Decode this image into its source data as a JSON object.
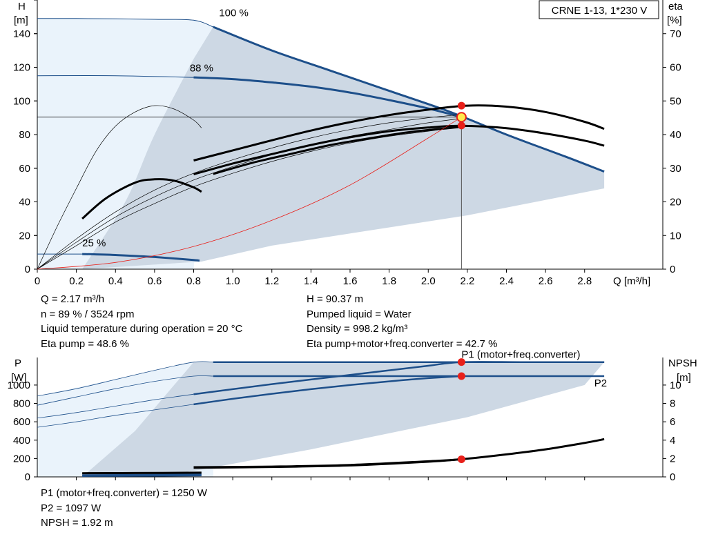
{
  "chart_data": [
    {
      "type": "line",
      "title": "CRNE 1-13, 1*230 V",
      "xlabel": "Q [m³/h]",
      "ylabel_left": [
        "H",
        "[m]"
      ],
      "ylabel_right": [
        "eta",
        "[%]"
      ],
      "xlim": [
        0,
        3.2
      ],
      "ylim_left": [
        0,
        160
      ],
      "ylim_right": [
        0,
        80
      ],
      "xticks": [
        "0",
        "0.2",
        "0.4",
        "0.6",
        "0.8",
        "1.0",
        "1.2",
        "1.4",
        "1.6",
        "1.8",
        "2.0",
        "2.2",
        "2.4",
        "2.6",
        "2.8"
      ],
      "yticks_left": [
        "0",
        "20",
        "40",
        "60",
        "80",
        "100",
        "120",
        "140"
      ],
      "yticks_right": [
        "0",
        "10",
        "20",
        "30",
        "40",
        "50",
        "60",
        "70"
      ],
      "speed_labels": [
        {
          "text": "100 %",
          "x": 0.93,
          "y": 148
        },
        {
          "text": "88 %",
          "x": 0.78,
          "y": 115
        },
        {
          "text": "25 %",
          "x": 0.23,
          "y": 11
        }
      ],
      "series": [
        {
          "name": "100 %",
          "kind": "head",
          "axis": "left",
          "x": [
            0,
            0.2,
            0.4,
            0.6,
            0.8,
            0.9,
            1.2,
            1.5,
            1.8,
            2.1,
            2.4,
            2.7,
            2.9
          ],
          "y": [
            149,
            149,
            148.8,
            148.5,
            148,
            144,
            130,
            118,
            106,
            94,
            80,
            67,
            58
          ],
          "fade_x": 0.9
        },
        {
          "name": "88 %",
          "kind": "head",
          "axis": "left",
          "x": [
            0,
            0.4,
            0.8,
            1.0,
            1.2,
            1.4,
            1.6,
            1.8,
            2.0,
            2.17
          ],
          "y": [
            115,
            115,
            114,
            113,
            111,
            108.5,
            105,
            100.5,
            95.5,
            90.4
          ],
          "fade_x": 0.8
        },
        {
          "name": "25 %",
          "kind": "head",
          "axis": "left",
          "x": [
            0,
            0.23,
            0.4,
            0.6,
            0.8,
            0.83
          ],
          "y": [
            9,
            9,
            8.4,
            7.2,
            5.4,
            5
          ],
          "fade_x": 0.23
        },
        {
          "name": "eta 100 %",
          "kind": "eta",
          "axis": "right",
          "style": "thick",
          "x": [
            0.8,
            1.0,
            1.2,
            1.4,
            1.6,
            1.8,
            2.0,
            2.2,
            2.4,
            2.6,
            2.8,
            2.9
          ],
          "y": [
            32.3,
            35.3,
            38.3,
            41.2,
            43.7,
            45.8,
            47.4,
            48.6,
            48.3,
            46.7,
            43.8,
            41.7
          ]
        },
        {
          "name": "eta 88 %",
          "kind": "eta",
          "axis": "right",
          "style": "thick",
          "x": [
            0.8,
            1.0,
            1.2,
            1.4,
            1.6,
            1.8,
            2.0,
            2.17,
            2.4,
            2.6,
            2.8,
            2.9
          ],
          "y": [
            28.2,
            31.4,
            34.2,
            36.9,
            39.2,
            41.0,
            42.1,
            42.6,
            41.9,
            40.3,
            38.2,
            36.7
          ]
        },
        {
          "name": "eta 88 % lower",
          "kind": "eta",
          "axis": "right",
          "style": "thick",
          "x": [
            0.9,
            1.1,
            1.3,
            1.5,
            1.7,
            1.9,
            2.1,
            2.17
          ],
          "y": [
            28.3,
            31.6,
            34.3,
            36.9,
            38.9,
            40.7,
            41.9,
            42.3
          ]
        },
        {
          "name": "eta 25 %",
          "kind": "eta",
          "axis": "right",
          "style": "thick",
          "x": [
            0.23,
            0.35,
            0.5,
            0.6,
            0.7,
            0.8,
            0.84
          ],
          "y": [
            15,
            21,
            25.7,
            26.7,
            26.3,
            24.3,
            23
          ]
        },
        {
          "name": "eta low-speed thin",
          "kind": "eta",
          "axis": "right",
          "style": "thin",
          "x": [
            0,
            0.1,
            0.2,
            0.3,
            0.4,
            0.5,
            0.6,
            0.7,
            0.8,
            0.84
          ],
          "y": [
            0,
            12.5,
            24,
            35,
            42.5,
            46.7,
            48.6,
            47.6,
            44.3,
            42
          ]
        },
        {
          "name": "eta guide 1",
          "kind": "eta",
          "axis": "right",
          "style": "thin",
          "x": [
            0,
            0.2,
            0.4,
            0.6,
            0.8,
            1.0,
            1.2,
            1.4,
            1.6,
            1.8,
            2.0,
            2.17
          ],
          "y": [
            0,
            9,
            17,
            23.5,
            28.5,
            32.5,
            36,
            39,
            41.5,
            43.5,
            45,
            46
          ]
        },
        {
          "name": "eta guide 2",
          "kind": "eta",
          "axis": "right",
          "style": "thin",
          "x": [
            0,
            0.2,
            0.4,
            0.6,
            0.8,
            1.0,
            1.2,
            1.4,
            1.6,
            1.8,
            2.0,
            2.17
          ],
          "y": [
            0,
            8,
            15.5,
            21.5,
            26.5,
            30.5,
            34,
            37,
            39.5,
            41.5,
            43.5,
            44.8
          ]
        },
        {
          "name": "eta guide 3",
          "kind": "eta",
          "axis": "right",
          "style": "thin",
          "x": [
            0,
            0.2,
            0.4,
            0.6,
            0.8,
            1.0,
            1.2,
            1.4,
            1.6,
            1.8,
            2.0,
            2.17
          ],
          "y": [
            0,
            7,
            14,
            19.5,
            24.5,
            28.5,
            32,
            35,
            37.5,
            39.5,
            41,
            42.3
          ]
        },
        {
          "name": "system curve",
          "kind": "system",
          "axis": "left",
          "x": [
            0,
            0.4,
            0.8,
            1.2,
            1.6,
            2.0,
            2.17
          ],
          "y": [
            0,
            4,
            13.5,
            29,
            50,
            78,
            90.4
          ]
        }
      ],
      "duty_point": {
        "q": 2.17,
        "h": 90.37,
        "eta_pump": 48.6,
        "eta_total": 42.7
      }
    },
    {
      "type": "line",
      "xlabel": "",
      "ylabel_left": [
        "P",
        "[W]"
      ],
      "ylabel_right": [
        "NPSH",
        "[m]"
      ],
      "xlim": [
        0,
        3.2
      ],
      "ylim_left": [
        0,
        1300
      ],
      "ylim_right": [
        0,
        13
      ],
      "yticks_left": [
        "0",
        "200",
        "400",
        "600",
        "800",
        "1000"
      ],
      "yticks_right": [
        "0",
        "2",
        "4",
        "6",
        "8",
        "10"
      ],
      "series_labels": [
        {
          "text": "P1 (motor+freq.converter)",
          "x": 2.17,
          "y": 1250
        },
        {
          "text": "P2",
          "x": 2.8,
          "y": 1000
        }
      ],
      "series": [
        {
          "name": "P1 (motor+freq.converter)",
          "kind": "power",
          "axis": "left",
          "x": [
            0,
            0.2,
            0.4,
            0.6,
            0.8,
            0.9,
            1.2,
            1.6,
            2.0,
            2.4,
            2.8,
            2.9
          ],
          "y": [
            880,
            960,
            1060,
            1160,
            1250,
            1250,
            1250,
            1250,
            1250,
            1250,
            1250,
            1250
          ],
          "fade_x": 0.9
        },
        {
          "name": "P1 88 %",
          "kind": "power",
          "axis": "left",
          "x": [
            0,
            0.2,
            0.4,
            0.6,
            0.8,
            1.0,
            1.2,
            1.4,
            1.6,
            1.8,
            2.0,
            2.17,
            2.5,
            2.9
          ],
          "y": [
            640,
            700,
            770,
            840,
            900,
            955,
            1010,
            1060,
            1110,
            1160,
            1210,
            1250,
            1250,
            1250
          ],
          "fade_x": 0.8
        },
        {
          "name": "P2",
          "kind": "power",
          "axis": "left",
          "x": [
            0,
            0.2,
            0.4,
            0.6,
            0.8,
            0.9,
            1.2,
            1.6,
            2.0,
            2.4,
            2.8,
            2.9
          ],
          "y": [
            780,
            870,
            960,
            1040,
            1097,
            1097,
            1097,
            1097,
            1097,
            1097,
            1097,
            1097
          ],
          "fade_x": 0.9
        },
        {
          "name": "P2 88 %",
          "kind": "power",
          "axis": "left",
          "x": [
            0,
            0.2,
            0.4,
            0.6,
            0.8,
            1.0,
            1.2,
            1.4,
            1.6,
            1.8,
            2.0,
            2.17
          ],
          "y": [
            540,
            600,
            670,
            730,
            790,
            850,
            905,
            955,
            1000,
            1040,
            1075,
            1097
          ],
          "fade_x": 0.8
        },
        {
          "name": "P1 25 %",
          "kind": "power",
          "axis": "left",
          "x": [
            0.23,
            0.5,
            0.84
          ],
          "y": [
            18,
            22,
            28
          ],
          "fade_x": 0.23
        },
        {
          "name": "P2 25 %",
          "kind": "power",
          "axis": "left",
          "x": [
            0.23,
            0.5,
            0.84
          ],
          "y": [
            10,
            12,
            16
          ],
          "fade_x": 0.23
        },
        {
          "name": "NPSH 100 %",
          "kind": "npsh",
          "axis": "right",
          "x": [
            0.8,
            1.2,
            1.6,
            2.0,
            2.17,
            2.4,
            2.6,
            2.8,
            2.9
          ],
          "y": [
            1.05,
            1.12,
            1.3,
            1.7,
            1.92,
            2.45,
            3.0,
            3.7,
            4.1
          ]
        },
        {
          "name": "NPSH 88 %",
          "kind": "npsh",
          "axis": "right",
          "x": [
            0.8,
            1.2,
            1.6,
            2.0,
            2.17
          ],
          "y": [
            1.0,
            1.08,
            1.25,
            1.65,
            1.92
          ]
        },
        {
          "name": "NPSH 25 %",
          "kind": "npsh",
          "axis": "right",
          "x": [
            0.23,
            0.5,
            0.84
          ],
          "y": [
            0.4,
            0.42,
            0.46
          ]
        }
      ],
      "duty_point": {
        "q": 2.17,
        "p1": 1250,
        "p2": 1097,
        "npsh": 1.92
      }
    }
  ],
  "upper_info": {
    "left": [
      "Q = 2.17 m³/h",
      "n = 89 % / 3524 rpm",
      "Liquid temperature during operation = 20 °C",
      "Eta pump = 48.6 %"
    ],
    "right": [
      "H = 90.37 m",
      "Pumped liquid = Water",
      "Density = 998.2 kg/m³",
      "Eta pump+motor+freq.converter = 42.7 %"
    ]
  },
  "lower_info": [
    "P1 (motor+freq.converter) = 1250 W",
    "P2 = 1097 W",
    "NPSH = 1.92 m"
  ],
  "colors": {
    "pump_curve": "#1d4f8a",
    "eta_curve": "#000000",
    "system_curve": "#e8201a",
    "operating_area": "#cdd8e4",
    "operating_area_light": "#eaf3fb",
    "marker": "#e8201a",
    "duty_marker_fill": "#ffe94d",
    "grid": "#000000"
  }
}
